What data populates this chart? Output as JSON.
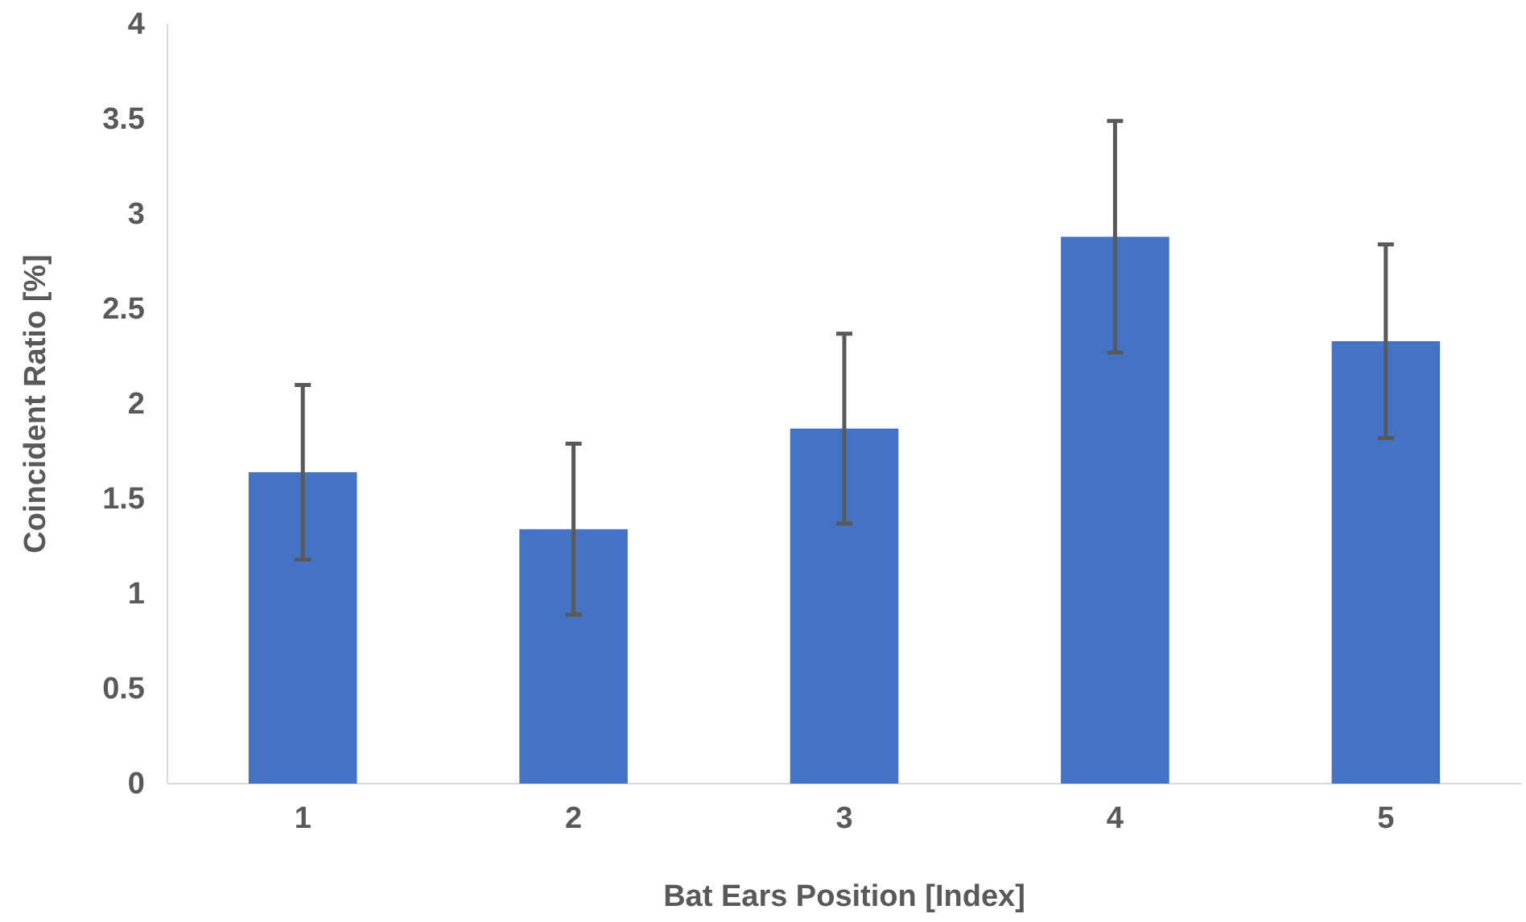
{
  "chart_data": {
    "type": "bar",
    "xlabel": "Bat Ears Position [Index]",
    "ylabel": "Coincident Ratio [%]",
    "categories": [
      "1",
      "2",
      "3",
      "4",
      "5"
    ],
    "values": [
      1.64,
      1.34,
      1.87,
      2.88,
      2.33
    ],
    "errors": [
      0.46,
      0.45,
      0.5,
      0.61,
      0.51
    ],
    "color": "#4472c4",
    "ylim": [
      0,
      4
    ],
    "yticks": [
      0,
      0.5,
      1,
      1.5,
      2,
      2.5,
      3,
      3.5,
      4
    ],
    "grid": false
  }
}
